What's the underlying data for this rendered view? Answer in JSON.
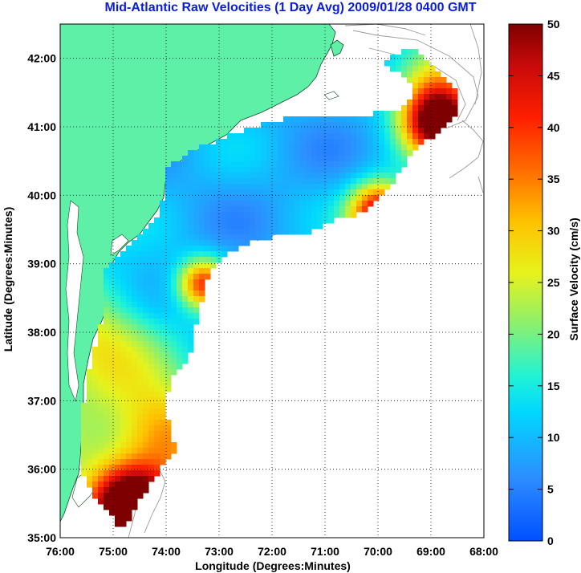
{
  "title": "Mid-Atlantic Raw Velocities (1 Day Avg) 2009/01/28 0400 GMT",
  "map": {
    "xlabel": "Longitude (Degrees:Minutes)",
    "ylabel": "Latitude (Degrees:Minutes)",
    "lon_range": [
      -76,
      -68
    ],
    "lat_range": [
      35,
      42.5
    ],
    "lon_ticks": [
      "76:00",
      "75:00",
      "74:00",
      "73:00",
      "72:00",
      "71:00",
      "70:00",
      "69:00",
      "68:00"
    ],
    "lat_ticks": [
      "35:00",
      "36:00",
      "37:00",
      "38:00",
      "39:00",
      "40:00",
      "41:00",
      "42:00"
    ],
    "grid": true,
    "land_color": "#5ff0a8",
    "depth_contour_color": "#9a9a9a"
  },
  "colorbar": {
    "label": "Surface Velocity (cm/s)",
    "min": 0,
    "max": 50,
    "ticks": [
      "0",
      "5",
      "10",
      "15",
      "20",
      "25",
      "30",
      "35",
      "40",
      "45",
      "50"
    ]
  }
}
